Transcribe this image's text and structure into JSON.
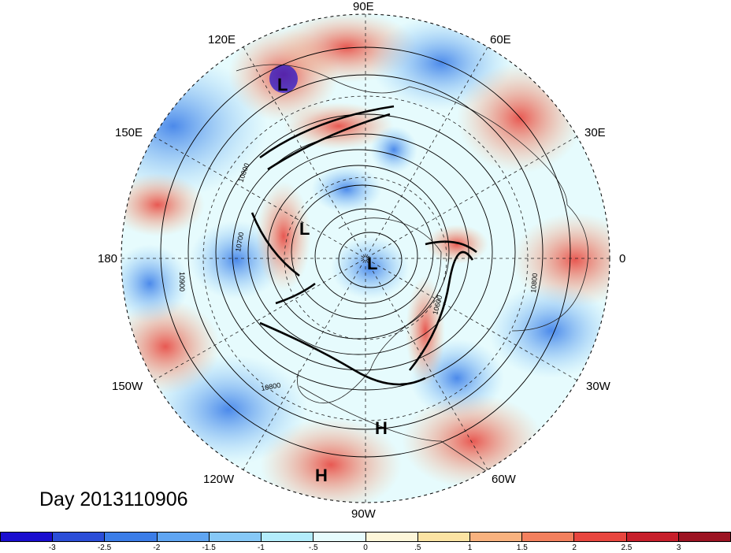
{
  "date_label": "Day 2013110906",
  "longitude_labels": {
    "e90": "90E",
    "e60": "60E",
    "e30": "30E",
    "zero": "0",
    "w30": "30W",
    "w60": "60W",
    "w90": "90W",
    "w120": "120W",
    "w150": "150W",
    "dateline": "180",
    "e150": "150E",
    "e120": "120E"
  },
  "pressure_marks": [
    {
      "id": "low-north-asia",
      "text": "L"
    },
    {
      "id": "low-pacific",
      "text": "L"
    },
    {
      "id": "low-pole",
      "text": "L"
    },
    {
      "id": "high-atlantic",
      "text": "H"
    },
    {
      "id": "high-gulf",
      "text": "H"
    }
  ],
  "contour_labels": [
    "10800",
    "10700",
    "10900",
    "10800",
    "10600",
    "10800"
  ],
  "colorbar": {
    "colors": [
      "#1a0ecf",
      "#2b4ed8",
      "#3b7de8",
      "#5fa5f2",
      "#86c8f7",
      "#b3ecfb",
      "#e6fbfd",
      "#fdf6d9",
      "#fbe3a3",
      "#f8b27f",
      "#f3805e",
      "#e8463f",
      "#c71f2b",
      "#9c1322"
    ],
    "ticks": [
      "-3",
      "-2.5",
      "-2",
      "-1.5",
      "-1",
      "-.5",
      "0",
      ".5",
      "1",
      "1.5",
      "2",
      "2.5",
      "3"
    ]
  }
}
